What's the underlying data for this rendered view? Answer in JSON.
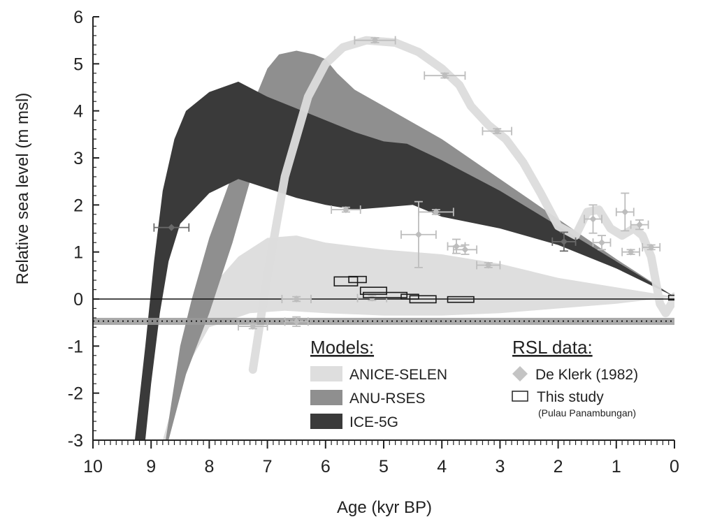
{
  "chart_data": {
    "type": "area",
    "xlabel": "Age (kyr BP)",
    "ylabel": "Relative sea level (m msl)",
    "xlim": [
      10,
      0
    ],
    "ylim": [
      -3,
      6
    ],
    "x_reversed": true,
    "x_ticks": [
      "10",
      "9",
      "8",
      "7",
      "6",
      "5",
      "4",
      "3",
      "2",
      "1",
      "0"
    ],
    "y_ticks": [
      "6",
      "5",
      "4",
      "3",
      "2",
      "1",
      "0",
      "-1",
      "-2",
      "-3"
    ],
    "grid": false,
    "legend_position": "bottom-right",
    "reference_lines": {
      "zero_level": 0,
      "dotted_level": -0.47,
      "band": [
        -0.55,
        -0.4
      ]
    },
    "legend": {
      "models_title": "Models:",
      "rsl_title": "RSL data:",
      "models": [
        {
          "label": "ANICE-SELEN",
          "color": "#dedede"
        },
        {
          "label": "ANU-RSES",
          "color": "#8f8f8f"
        },
        {
          "label": "ICE-5G",
          "color": "#3a3a3a"
        }
      ],
      "rsl": [
        {
          "label": "De Klerk (1982)",
          "marker": "diamond",
          "color": "#c4c4c4"
        },
        {
          "label": "This study",
          "marker": "box",
          "sublabel": "(Pulau Panambungan)"
        }
      ]
    },
    "series": [
      {
        "name": "ANICE-SELEN",
        "kind": "band",
        "color": "#dedede",
        "upper": [
          [
            8.7,
            -3
          ],
          [
            8.4,
            -1
          ],
          [
            8,
            0.2
          ],
          [
            7.5,
            0.9
          ],
          [
            7,
            1.3
          ],
          [
            6.5,
            1.35
          ],
          [
            6,
            1.2
          ],
          [
            5,
            1.05
          ],
          [
            4,
            0.95
          ],
          [
            3,
            0.75
          ],
          [
            2,
            0.45
          ],
          [
            1,
            0.25
          ],
          [
            0,
            0.05
          ]
        ],
        "lower": [
          [
            0,
            0.05
          ],
          [
            1,
            -0.1
          ],
          [
            2,
            -0.2
          ],
          [
            3,
            -0.3
          ],
          [
            4,
            -0.35
          ],
          [
            5,
            -0.35
          ],
          [
            6,
            -0.3
          ],
          [
            6.7,
            -0.25
          ],
          [
            7.3,
            -0.3
          ],
          [
            8,
            -0.6
          ],
          [
            8.5,
            -1.7
          ],
          [
            8.8,
            -3
          ]
        ]
      },
      {
        "name": "ANU-RSES",
        "kind": "band",
        "color": "#8f8f8f",
        "upper": [
          [
            8.75,
            -3
          ],
          [
            8.5,
            -1
          ],
          [
            8.3,
            0
          ],
          [
            8,
            1.3
          ],
          [
            7.5,
            3
          ],
          [
            7.2,
            4.3
          ],
          [
            7,
            4.9
          ],
          [
            6.8,
            5.2
          ],
          [
            6.5,
            5.28
          ],
          [
            6.2,
            5.2
          ],
          [
            6,
            5.1
          ],
          [
            5.8,
            4.8
          ],
          [
            5.5,
            4.45
          ],
          [
            5,
            4.1
          ],
          [
            4,
            3.4
          ],
          [
            3,
            2.55
          ],
          [
            2,
            1.7
          ],
          [
            1,
            0.85
          ],
          [
            0,
            0.05
          ]
        ],
        "lower": [
          [
            0,
            0.05
          ],
          [
            1,
            0.8
          ],
          [
            2,
            1.3
          ],
          [
            3,
            1.9
          ],
          [
            4,
            2.25
          ],
          [
            4.5,
            2.4
          ],
          [
            5,
            2.6
          ],
          [
            5.5,
            2.95
          ],
          [
            6,
            3.3
          ],
          [
            6.5,
            3.45
          ],
          [
            7,
            3.1
          ],
          [
            7.3,
            2.5
          ],
          [
            7.6,
            1.2
          ],
          [
            8,
            -0.3
          ],
          [
            8.4,
            -1.6
          ],
          [
            8.7,
            -3
          ]
        ]
      },
      {
        "name": "ICE-5G",
        "kind": "band",
        "color": "#3a3a3a",
        "upper": [
          [
            9.28,
            -3
          ],
          [
            9.1,
            -1
          ],
          [
            8.95,
            0.8
          ],
          [
            8.8,
            2.3
          ],
          [
            8.6,
            3.4
          ],
          [
            8.4,
            4
          ],
          [
            8,
            4.4
          ],
          [
            7.5,
            4.62
          ],
          [
            7,
            4.3
          ],
          [
            6.5,
            4.05
          ],
          [
            6,
            3.8
          ],
          [
            5.5,
            3.55
          ],
          [
            5,
            3.35
          ],
          [
            4.6,
            3.3
          ],
          [
            4,
            2.95
          ],
          [
            3,
            2.3
          ],
          [
            2,
            1.55
          ],
          [
            1,
            0.8
          ],
          [
            0,
            0.05
          ]
        ],
        "lower": [
          [
            0,
            0.05
          ],
          [
            1,
            0.65
          ],
          [
            2,
            1.15
          ],
          [
            3,
            1.5
          ],
          [
            4,
            1.75
          ],
          [
            4.5,
            2.0
          ],
          [
            5,
            1.95
          ],
          [
            5.5,
            1.9
          ],
          [
            6,
            2.0
          ],
          [
            6.5,
            2.15
          ],
          [
            7,
            2.35
          ],
          [
            7.5,
            2.55
          ],
          [
            8,
            2.25
          ],
          [
            8.5,
            1.6
          ],
          [
            8.7,
            0.8
          ],
          [
            8.85,
            -0.3
          ],
          [
            9.0,
            -1.8
          ],
          [
            9.1,
            -3
          ]
        ]
      },
      {
        "name": "RSL curve",
        "kind": "line",
        "color": "#dcdcdc",
        "points": [
          [
            7.25,
            -1.5
          ],
          [
            7.0,
            0.5
          ],
          [
            6.7,
            2.6
          ],
          [
            6.3,
            4.3
          ],
          [
            6,
            5.0
          ],
          [
            5.7,
            5.35
          ],
          [
            5.3,
            5.5
          ],
          [
            4.8,
            5.45
          ],
          [
            4.4,
            5.25
          ],
          [
            4.0,
            4.9
          ],
          [
            3.7,
            4.55
          ],
          [
            3.5,
            4.1
          ],
          [
            3.2,
            3.7
          ],
          [
            2.9,
            3.4
          ],
          [
            2.6,
            2.9
          ],
          [
            2.3,
            2.25
          ],
          [
            2.0,
            1.55
          ],
          [
            1.7,
            1.35
          ],
          [
            1.5,
            1.85
          ],
          [
            1.3,
            1.9
          ],
          [
            1.1,
            1.5
          ],
          [
            0.9,
            1.35
          ],
          [
            0.7,
            1.5
          ],
          [
            0.55,
            1.35
          ],
          [
            0.4,
            0.9
          ],
          [
            0.25,
            -0.1
          ],
          [
            0.15,
            -0.3
          ],
          [
            0.05,
            -0.1
          ],
          [
            0,
            0.05
          ]
        ]
      }
    ],
    "de_klerk_points": [
      {
        "x": 8.65,
        "y": 1.52,
        "xerr": 0.3,
        "yerr": 0,
        "dark": true
      },
      {
        "x": 5.15,
        "y": 5.5,
        "xerr": 0.35,
        "yerr": 0.05
      },
      {
        "x": 3.95,
        "y": 4.75,
        "xerr": 0.35,
        "yerr": 0.05
      },
      {
        "x": 3.05,
        "y": 3.57,
        "xerr": 0.25,
        "yerr": 0.05
      },
      {
        "x": 5.65,
        "y": 1.9,
        "xerr": 0.25,
        "yerr": 0.05
      },
      {
        "x": 4.1,
        "y": 1.85,
        "xerr": 0.3,
        "yerr": 0.05
      },
      {
        "x": 4.4,
        "y": 1.37,
        "xerr": 0.3,
        "yerr": 0.7
      },
      {
        "x": 3.75,
        "y": 1.12,
        "xerr": 0.15,
        "yerr": 0.15
      },
      {
        "x": 3.6,
        "y": 1.05,
        "xerr": 0.2,
        "yerr": 0.1
      },
      {
        "x": 3.2,
        "y": 0.72,
        "xerr": 0.2,
        "yerr": 0.05
      },
      {
        "x": 1.9,
        "y": 1.22,
        "xerr": 0.2,
        "yerr": 0.2,
        "dark": true
      },
      {
        "x": 1.4,
        "y": 1.7,
        "xerr": 0.15,
        "yerr": 0.3
      },
      {
        "x": 1.25,
        "y": 1.2,
        "xerr": 0.15,
        "yerr": 0.15
      },
      {
        "x": 0.85,
        "y": 1.85,
        "xerr": 0.15,
        "yerr": 0.4
      },
      {
        "x": 0.75,
        "y": 1.0,
        "xerr": 0.15,
        "yerr": 0.05
      },
      {
        "x": 0.6,
        "y": 1.58,
        "xerr": 0.15,
        "yerr": 0.1
      },
      {
        "x": 0.4,
        "y": 1.1,
        "xerr": 0.15,
        "yerr": 0.05
      },
      {
        "x": 6.5,
        "y": 0.0,
        "xerr": 0.25,
        "yerr": 0.05
      },
      {
        "x": 5.2,
        "y": 0.02,
        "xerr": 0.25,
        "yerr": 0.05
      },
      {
        "x": 7.25,
        "y": -0.58,
        "xerr": 0.25,
        "yerr": 0.05
      },
      {
        "x": 6.5,
        "y": -0.48,
        "xerr": 0.2,
        "yerr": 0.1
      }
    ],
    "this_study_boxes": [
      {
        "x0": 5.85,
        "x1": 5.45,
        "y0": 0.28,
        "y1": 0.47
      },
      {
        "x0": 5.6,
        "x1": 5.3,
        "y0": 0.35,
        "y1": 0.48
      },
      {
        "x0": 5.4,
        "x1": 4.95,
        "y0": 0.1,
        "y1": 0.25
      },
      {
        "x0": 5.35,
        "x1": 4.6,
        "y0": 0.03,
        "y1": 0.14
      },
      {
        "x0": 4.7,
        "x1": 4.4,
        "y0": 0.0,
        "y1": 0.1
      },
      {
        "x0": 4.55,
        "x1": 4.1,
        "y0": -0.08,
        "y1": 0.07
      },
      {
        "x0": 3.9,
        "x1": 3.45,
        "y0": -0.07,
        "y1": 0.05
      },
      {
        "x0": 0.1,
        "x1": -0.02,
        "y0": -0.02,
        "y1": 0.08
      }
    ]
  }
}
